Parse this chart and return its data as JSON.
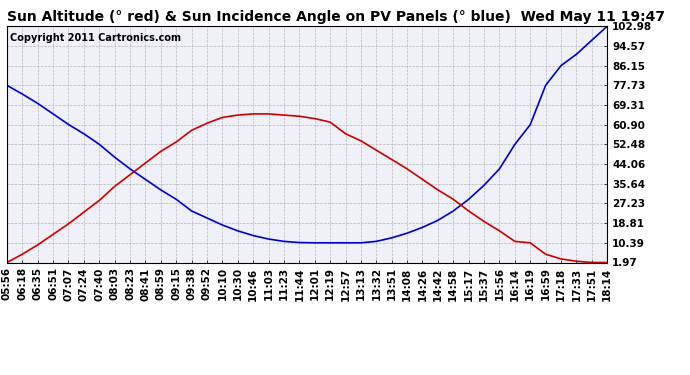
{
  "title": "Sun Altitude (° red) & Sun Incidence Angle on PV Panels (° blue)  Wed May 11 19:47",
  "copyright": "Copyright 2011 Cartronics.com",
  "background_color": "#ffffff",
  "plot_background": "#f0f0f8",
  "grid_color": "#aaaaaa",
  "y_ticks": [
    1.97,
    10.39,
    18.81,
    27.23,
    35.64,
    44.06,
    52.48,
    60.9,
    69.31,
    77.73,
    86.15,
    94.57,
    102.98
  ],
  "x_labels": [
    "05:56",
    "06:18",
    "06:35",
    "06:51",
    "07:07",
    "07:24",
    "07:40",
    "08:03",
    "08:23",
    "08:41",
    "08:59",
    "09:15",
    "09:38",
    "09:52",
    "10:10",
    "10:30",
    "10:46",
    "11:03",
    "11:23",
    "11:44",
    "12:01",
    "12:19",
    "12:57",
    "13:13",
    "13:32",
    "13:51",
    "14:08",
    "14:26",
    "14:42",
    "14:58",
    "15:17",
    "15:37",
    "15:56",
    "16:14",
    "16:19",
    "16:59",
    "17:18",
    "17:33",
    "17:51",
    "18:14"
  ],
  "blue_line_color": "#0000cc",
  "red_line_color": "#cc0000",
  "title_fontsize": 10,
  "copyright_fontsize": 7,
  "tick_fontsize": 7.5,
  "blue_data": [
    77.73,
    74.0,
    70.0,
    65.5,
    61.0,
    57.0,
    52.5,
    47.0,
    42.0,
    37.5,
    33.0,
    29.0,
    24.0,
    21.0,
    18.0,
    15.5,
    13.5,
    12.0,
    11.0,
    10.5,
    10.39,
    10.39,
    10.39,
    10.39,
    11.0,
    12.5,
    14.5,
    17.0,
    20.0,
    24.0,
    29.0,
    35.0,
    42.0,
    52.48,
    60.9,
    77.73,
    86.15,
    91.0,
    97.0,
    102.98
  ],
  "red_data": [
    1.97,
    5.5,
    9.5,
    14.0,
    18.5,
    23.5,
    28.5,
    34.5,
    39.5,
    44.5,
    49.5,
    53.5,
    58.5,
    61.5,
    64.0,
    65.0,
    65.5,
    65.5,
    65.0,
    64.5,
    63.5,
    62.0,
    57.0,
    54.0,
    50.0,
    46.0,
    42.0,
    37.5,
    33.0,
    29.0,
    24.0,
    19.5,
    15.5,
    11.0,
    10.39,
    5.5,
    3.5,
    2.5,
    1.97,
    1.97
  ]
}
